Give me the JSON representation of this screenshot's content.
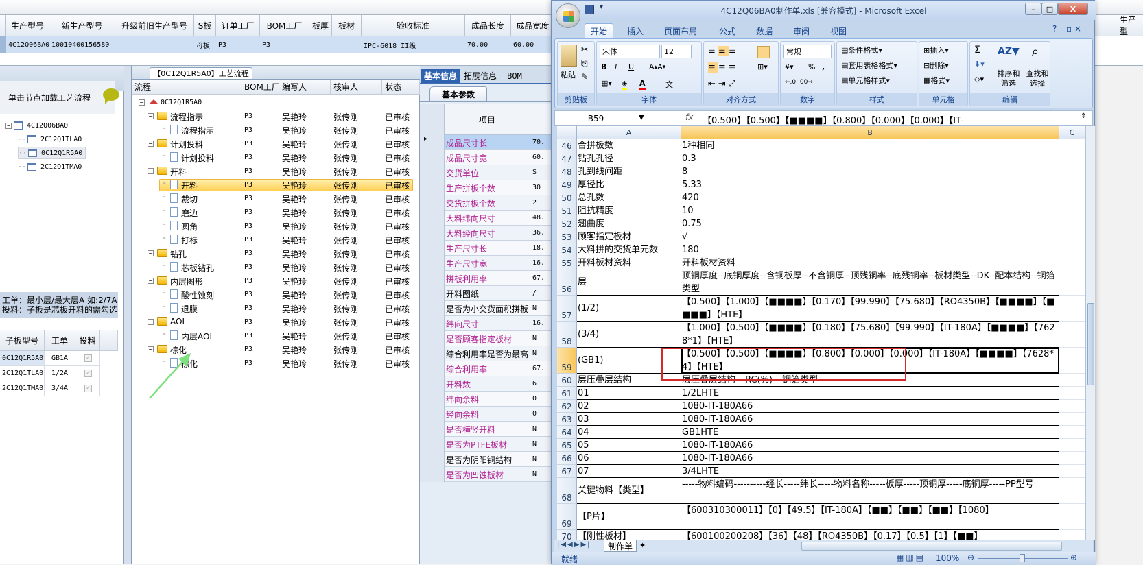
{
  "top_grid": {
    "headers": [
      "生产型号",
      "新生产型号",
      "升级前旧生产型号",
      "S板",
      "订单工厂",
      "BOM工厂",
      "板厚",
      "板材",
      "验收标准",
      "成品长度",
      "成品宽度",
      "PN"
    ],
    "row": [
      "4C12Q06BA0",
      "10010400156580",
      "",
      "母板",
      "P3",
      "P3",
      "",
      "",
      "IPC-6018 II级",
      "70.00",
      "60.00",
      ""
    ],
    "right_header": "生产型"
  },
  "left_panel": {
    "hint": "单击节点加载工艺流程",
    "tree": [
      {
        "label": "4C12Q06BA0",
        "level": 0
      },
      {
        "label": "2C12Q1TLA0",
        "level": 1
      },
      {
        "label": "0C12Q1R5A0",
        "level": 1,
        "selected": true
      },
      {
        "label": "2C12Q1TMA0",
        "level": 1
      }
    ],
    "info_line1": "工单：最小层/最大层A 如:2/7A",
    "info_line2": "投料：子板是芯板开料的需勾选",
    "table_headers": [
      "子板型号",
      "工单",
      "投料"
    ],
    "table_rows": [
      {
        "model": "0C12Q1R5A0",
        "order": "GB1A",
        "feed": true
      },
      {
        "model": "2C12Q1TLA0",
        "order": "1/2A",
        "feed": true
      },
      {
        "model": "2C12Q1TMA0",
        "order": "3/4A",
        "feed": true
      }
    ]
  },
  "flow_panel": {
    "tab": "【0C12Q1R5A0】工艺流程",
    "headers": [
      "流程",
      "BOM工厂",
      "编写人",
      "核审人",
      "状态"
    ],
    "root": "0C12Q1R5A0",
    "rows": [
      {
        "label": "流程指示",
        "type": "folder",
        "factory": "P3",
        "writer": "吴艳玲",
        "reviewer": "张传刚",
        "status": "已审核"
      },
      {
        "label": "流程指示",
        "type": "doc",
        "factory": "P3",
        "writer": "吴艳玲",
        "reviewer": "张传刚",
        "status": "已审核"
      },
      {
        "label": "计划投料",
        "type": "folder",
        "factory": "P3",
        "writer": "吴艳玲",
        "reviewer": "张传刚",
        "status": "已审核"
      },
      {
        "label": "计划投料",
        "type": "doc",
        "factory": "P3",
        "writer": "吴艳玲",
        "reviewer": "张传刚",
        "status": "已审核"
      },
      {
        "label": "开料",
        "type": "folder",
        "factory": "P3",
        "writer": "吴艳玲",
        "reviewer": "张传刚",
        "status": "已审核"
      },
      {
        "label": "开料",
        "type": "doc",
        "factory": "P3",
        "writer": "吴艳玲",
        "reviewer": "张传刚",
        "status": "已审核",
        "selected": true
      },
      {
        "label": "裁切",
        "type": "doc",
        "factory": "P3",
        "writer": "吴艳玲",
        "reviewer": "张传刚",
        "status": "已审核"
      },
      {
        "label": "磨边",
        "type": "doc",
        "factory": "P3",
        "writer": "吴艳玲",
        "reviewer": "张传刚",
        "status": "已审核"
      },
      {
        "label": "圆角",
        "type": "doc",
        "factory": "P3",
        "writer": "吴艳玲",
        "reviewer": "张传刚",
        "status": "已审核"
      },
      {
        "label": "打标",
        "type": "doc",
        "factory": "P3",
        "writer": "吴艳玲",
        "reviewer": "张传刚",
        "status": "已审核"
      },
      {
        "label": "钻孔",
        "type": "folder",
        "factory": "P3",
        "writer": "吴艳玲",
        "reviewer": "张传刚",
        "status": "已审核"
      },
      {
        "label": "芯板钻孔",
        "type": "doc",
        "factory": "P3",
        "writer": "吴艳玲",
        "reviewer": "张传刚",
        "status": "已审核"
      },
      {
        "label": "内层图形",
        "type": "folder",
        "factory": "P3",
        "writer": "吴艳玲",
        "reviewer": "张传刚",
        "status": "已审核"
      },
      {
        "label": "酸性蚀刻",
        "type": "doc",
        "factory": "P3",
        "writer": "吴艳玲",
        "reviewer": "张传刚",
        "status": "已审核"
      },
      {
        "label": "退膜",
        "type": "doc",
        "factory": "P3",
        "writer": "吴艳玲",
        "reviewer": "张传刚",
        "status": "已审核"
      },
      {
        "label": "AOI",
        "type": "folder",
        "factory": "P3",
        "writer": "吴艳玲",
        "reviewer": "张传刚",
        "status": "已审核"
      },
      {
        "label": "内层AOI",
        "type": "doc",
        "factory": "P3",
        "writer": "吴艳玲",
        "reviewer": "张传刚",
        "status": "已审核"
      },
      {
        "label": "棕化",
        "type": "folder",
        "factory": "P3",
        "writer": "吴艳玲",
        "reviewer": "张传刚",
        "status": "已审核"
      },
      {
        "label": "棕化",
        "type": "doc",
        "factory": "P3",
        "writer": "吴艳玲",
        "reviewer": "张传刚",
        "status": "已审核"
      }
    ]
  },
  "prop_panel": {
    "tabs": [
      "基本信息",
      "拓展信息",
      "BOM"
    ],
    "subtab": "基本参数",
    "column_header": "项目",
    "label_color": "#b0208f",
    "rows": [
      {
        "label": "成品尺寸长",
        "value": "70.",
        "highlight": true
      },
      {
        "label": "成品尺寸宽",
        "value": "60.",
        "highlight": true
      },
      {
        "label": "交货单位",
        "value": "S",
        "highlight": true
      },
      {
        "label": "生产拼板个数",
        "value": "30",
        "highlight": true
      },
      {
        "label": "交货拼板个数",
        "value": "2",
        "highlight": true
      },
      {
        "label": "大料纬向尺寸",
        "value": "48.",
        "highlight": true
      },
      {
        "label": "大料经向尺寸",
        "value": "36.",
        "highlight": true
      },
      {
        "label": "生产尺寸长",
        "value": "18.",
        "highlight": true
      },
      {
        "label": "生产尺寸宽",
        "value": "16.",
        "highlight": true
      },
      {
        "label": "拼板利用率",
        "value": "67.",
        "highlight": true
      },
      {
        "label": "开料图纸",
        "value": "/",
        "highlight": false
      },
      {
        "label": "是否为小交货面积拼板",
        "value": "N",
        "highlight": false
      },
      {
        "label": "纬向尺寸",
        "value": "16.",
        "highlight": true
      },
      {
        "label": "是否顾客指定板材",
        "value": "N",
        "highlight": true
      },
      {
        "label": "综合利用率是否为最高",
        "value": "N",
        "highlight": false
      },
      {
        "label": "综合利用率",
        "value": "67.",
        "highlight": true
      },
      {
        "label": "开料数",
        "value": "6",
        "highlight": true
      },
      {
        "label": "纬向余料",
        "value": "0",
        "highlight": true
      },
      {
        "label": "经向余料",
        "value": "0",
        "highlight": true
      },
      {
        "label": "是否横竖开料",
        "value": "N",
        "highlight": true
      },
      {
        "label": "是否为PTFE板材",
        "value": "N",
        "highlight": true
      },
      {
        "label": "是否为阴阳铜结构",
        "value": "N",
        "highlight": false
      },
      {
        "label": "是否为凹蚀板材",
        "value": "N",
        "highlight": true
      }
    ]
  },
  "excel": {
    "title": "4C12Q06BA0制作单.xls  [兼容模式] - Microsoft Excel",
    "window_buttons": [
      "–",
      "□",
      "X"
    ],
    "ribbon_tabs": [
      "开始",
      "插入",
      "页面布局",
      "公式",
      "数据",
      "审阅",
      "视图"
    ],
    "clipboard": {
      "paste": "粘贴",
      "group": "剪贴板"
    },
    "font": {
      "name": "宋体",
      "size": "12",
      "group": "字体",
      "bold": "B",
      "italic": "I",
      "underline": "U"
    },
    "alignment": {
      "group": "对齐方式"
    },
    "number": {
      "format": "常规",
      "percent": "%",
      "comma": ",",
      "group": "数字"
    },
    "styles": {
      "items": [
        "条件格式",
        "套用表格格式",
        "单元格样式"
      ],
      "group": "样式"
    },
    "cells": {
      "items": [
        "插入",
        "删除",
        "格式"
      ],
      "group": "单元格"
    },
    "editing": {
      "sum": "Σ",
      "sort": "排序和筛选",
      "find": "查找和选择",
      "group": "编辑"
    },
    "name_box": "B59",
    "fx": "fx",
    "formula": "【0.500】【0.500】【■■■■】【0.800】【0.000】【0.000】【IT-",
    "columns": [
      "A",
      "B",
      "C"
    ],
    "active_column": "B",
    "rows": [
      {
        "n": "46",
        "a": "合拼板数",
        "b": "1种相同"
      },
      {
        "n": "47",
        "a": "钻孔孔径",
        "b": "0.3"
      },
      {
        "n": "48",
        "a": "孔到线间距",
        "b": "8"
      },
      {
        "n": "49",
        "a": "厚径比",
        "b": "5.33"
      },
      {
        "n": "50",
        "a": "总孔数",
        "b": "420"
      },
      {
        "n": "51",
        "a": "阻抗精度",
        "b": "10"
      },
      {
        "n": "52",
        "a": "翘曲度",
        "b": "0.75"
      },
      {
        "n": "53",
        "a": "顾客指定板材",
        "b": "√"
      },
      {
        "n": "54",
        "a": "大料拼的交货单元数",
        "b": "180"
      },
      {
        "n": "55",
        "a": "开料板材资料",
        "b": "开料板材资料"
      },
      {
        "n": "56",
        "a": "层",
        "b": "顶铜厚度--底铜厚度--含铜板厚--不含铜厚--顶残铜率--底残铜率--板材类型--DK--配本结构--铜箔类型",
        "tall": true
      },
      {
        "n": "57",
        "a": "(1/2)",
        "b": "【0.500】【1.000】【■■■■】【0.170】【99.990】【75.680】【RO4350B】【■■■■】【■■■■】【HTE】",
        "tall": true
      },
      {
        "n": "58",
        "a": "(3/4)",
        "b": "【1.000】【0.500】【■■■■】【0.180】【75.680】【99.990】【IT-180A】【■■■■】【7628*1】【HTE】",
        "tall": true
      },
      {
        "n": "59",
        "a": "(GB1)",
        "b": "【0.500】【0.500】【■■■■】【0.800】【0.000】【0.000】【IT-180A】【■■■■】【7628*4】【HTE】",
        "tall": true,
        "active": true
      },
      {
        "n": "60",
        "a": "层压叠层结构",
        "b": "层压叠层结构---RC(%)---铜箔类型"
      },
      {
        "n": "61",
        "a": "01",
        "b": "1/2LHTE"
      },
      {
        "n": "62",
        "a": "02",
        "b": "1080-IT-180A66"
      },
      {
        "n": "63",
        "a": "03",
        "b": "1080-IT-180A66"
      },
      {
        "n": "64",
        "a": "04",
        "b": "GB1HTE"
      },
      {
        "n": "65",
        "a": "05",
        "b": "1080-IT-180A66"
      },
      {
        "n": "66",
        "a": "06",
        "b": "1080-IT-180A66"
      },
      {
        "n": "67",
        "a": "07",
        "b": "3/4LHTE"
      },
      {
        "n": "68",
        "a": "关键物料【类型】",
        "b": "-----物料编码----------经长-----纬长-----物料名称-----板厚-----顶铜厚-----底铜厚-----PP型号",
        "tall": true
      },
      {
        "n": "69",
        "a": "【P片】",
        "b": "【600310300011】【0】【49.5】【IT-180A】【■■】【■■】【■■】【1080】",
        "tall": true
      },
      {
        "n": "70",
        "a": "【刚性板材】",
        "b": "【600100200208】【36】【48】【RO4350B】【0.17】【0.5】【1】【■■】"
      }
    ],
    "sheet_tab": "制作单",
    "status": "就绪",
    "zoom": "100%"
  },
  "annotations": {
    "highlight_color": "#d42a2a",
    "arrow_color": "#7ee07e"
  }
}
